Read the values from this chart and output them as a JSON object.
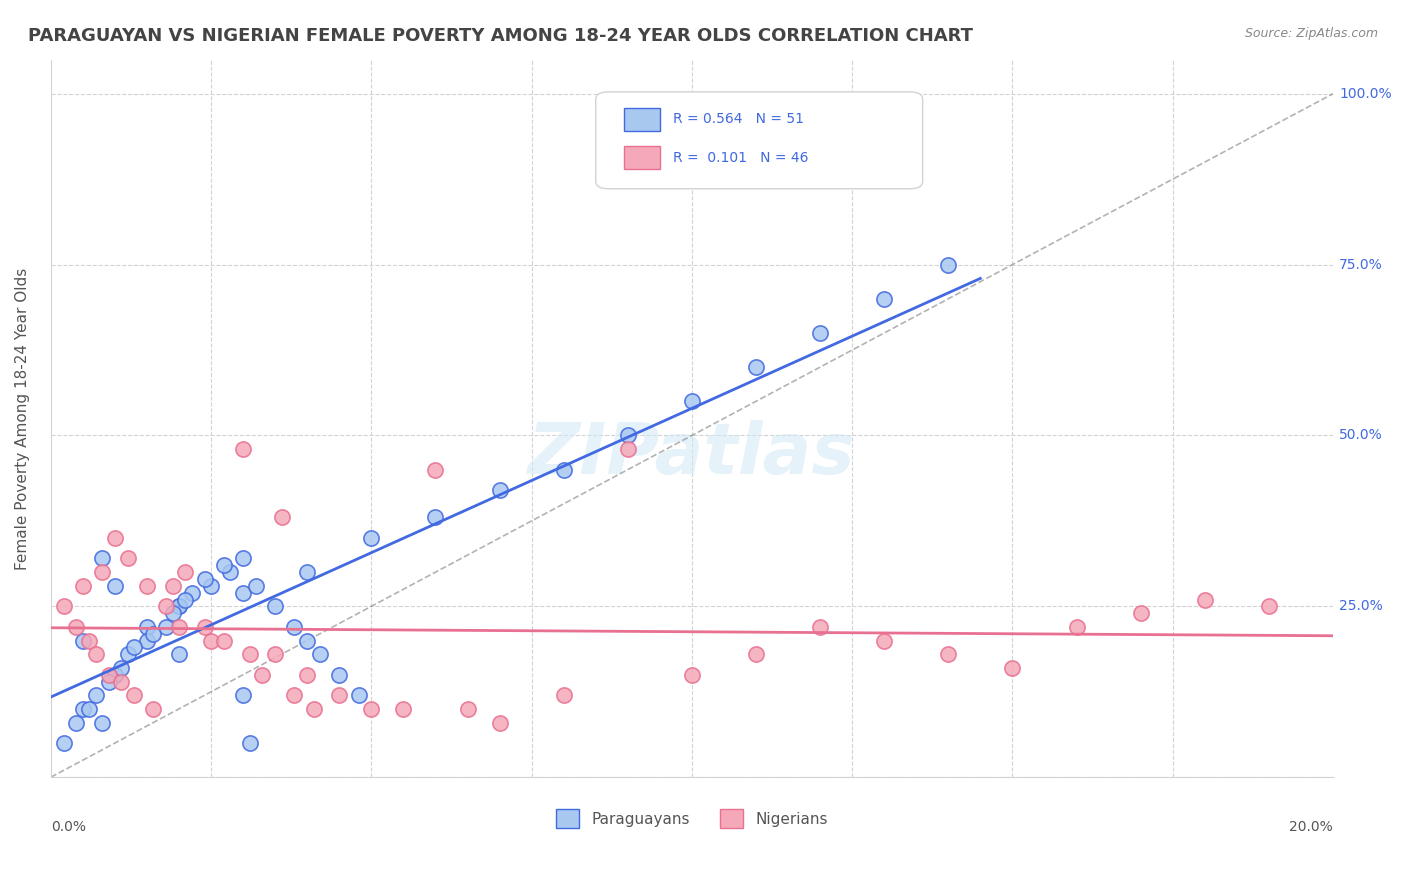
{
  "title": "PARAGUAYAN VS NIGERIAN FEMALE POVERTY AMONG 18-24 YEAR OLDS CORRELATION CHART",
  "source": "Source: ZipAtlas.com",
  "ylabel": "Female Poverty Among 18-24 Year Olds",
  "ytick_vals": [
    0,
    0.25,
    0.5,
    0.75,
    1.0
  ],
  "right_tick_labels": [
    "",
    "25.0%",
    "50.0%",
    "75.0%",
    "100.0%"
  ],
  "xlim": [
    0.0,
    0.2
  ],
  "ylim": [
    0.0,
    1.05
  ],
  "paraguayan_color": "#a8c8f0",
  "nigerian_color": "#f5a8b8",
  "paraguayan_line_color": "#4169e1",
  "nigerian_line_color": "#e87090",
  "paraguayan_scatter": [
    [
      0.02,
      0.18
    ],
    [
      0.01,
      0.15
    ],
    [
      0.03,
      0.12
    ],
    [
      0.005,
      0.2
    ],
    [
      0.015,
      0.22
    ],
    [
      0.01,
      0.28
    ],
    [
      0.008,
      0.32
    ],
    [
      0.02,
      0.25
    ],
    [
      0.03,
      0.27
    ],
    [
      0.04,
      0.3
    ],
    [
      0.05,
      0.35
    ],
    [
      0.06,
      0.38
    ],
    [
      0.07,
      0.42
    ],
    [
      0.08,
      0.45
    ],
    [
      0.09,
      0.5
    ],
    [
      0.1,
      0.55
    ],
    [
      0.11,
      0.6
    ],
    [
      0.12,
      0.65
    ],
    [
      0.13,
      0.7
    ],
    [
      0.14,
      0.75
    ],
    [
      0.005,
      0.1
    ],
    [
      0.008,
      0.08
    ],
    [
      0.01,
      0.15
    ],
    [
      0.012,
      0.18
    ],
    [
      0.015,
      0.2
    ],
    [
      0.018,
      0.22
    ],
    [
      0.02,
      0.25
    ],
    [
      0.022,
      0.27
    ],
    [
      0.025,
      0.28
    ],
    [
      0.028,
      0.3
    ],
    [
      0.03,
      0.32
    ],
    [
      0.032,
      0.28
    ],
    [
      0.035,
      0.25
    ],
    [
      0.038,
      0.22
    ],
    [
      0.04,
      0.2
    ],
    [
      0.042,
      0.18
    ],
    [
      0.045,
      0.15
    ],
    [
      0.048,
      0.12
    ],
    [
      0.002,
      0.05
    ],
    [
      0.004,
      0.08
    ],
    [
      0.006,
      0.1
    ],
    [
      0.007,
      0.12
    ],
    [
      0.009,
      0.14
    ],
    [
      0.011,
      0.16
    ],
    [
      0.013,
      0.19
    ],
    [
      0.016,
      0.21
    ],
    [
      0.019,
      0.24
    ],
    [
      0.021,
      0.26
    ],
    [
      0.024,
      0.29
    ],
    [
      0.027,
      0.31
    ],
    [
      0.031,
      0.05
    ]
  ],
  "nigerian_scatter": [
    [
      0.005,
      0.28
    ],
    [
      0.008,
      0.3
    ],
    [
      0.01,
      0.35
    ],
    [
      0.012,
      0.32
    ],
    [
      0.015,
      0.28
    ],
    [
      0.018,
      0.25
    ],
    [
      0.02,
      0.22
    ],
    [
      0.025,
      0.2
    ],
    [
      0.03,
      0.48
    ],
    [
      0.035,
      0.18
    ],
    [
      0.04,
      0.15
    ],
    [
      0.045,
      0.12
    ],
    [
      0.05,
      0.1
    ],
    [
      0.06,
      0.45
    ],
    [
      0.07,
      0.08
    ],
    [
      0.08,
      0.12
    ],
    [
      0.09,
      0.48
    ],
    [
      0.1,
      0.15
    ],
    [
      0.11,
      0.18
    ],
    [
      0.12,
      0.22
    ],
    [
      0.13,
      0.2
    ],
    [
      0.14,
      0.18
    ],
    [
      0.15,
      0.16
    ],
    [
      0.16,
      0.22
    ],
    [
      0.17,
      0.24
    ],
    [
      0.18,
      0.26
    ],
    [
      0.19,
      0.25
    ],
    [
      0.002,
      0.25
    ],
    [
      0.004,
      0.22
    ],
    [
      0.006,
      0.2
    ],
    [
      0.007,
      0.18
    ],
    [
      0.009,
      0.15
    ],
    [
      0.011,
      0.14
    ],
    [
      0.013,
      0.12
    ],
    [
      0.016,
      0.1
    ],
    [
      0.019,
      0.28
    ],
    [
      0.021,
      0.3
    ],
    [
      0.024,
      0.22
    ],
    [
      0.027,
      0.2
    ],
    [
      0.031,
      0.18
    ],
    [
      0.033,
      0.15
    ],
    [
      0.036,
      0.38
    ],
    [
      0.038,
      0.12
    ],
    [
      0.041,
      0.1
    ],
    [
      0.055,
      0.1
    ],
    [
      0.065,
      0.1
    ]
  ],
  "title_fontsize": 13,
  "label_fontsize": 11,
  "tick_fontsize": 10,
  "source_fontsize": 9,
  "legend_r1": "R = 0.564",
  "legend_n1": "N = 51",
  "legend_r2": "R =  0.101",
  "legend_n2": "N = 46"
}
